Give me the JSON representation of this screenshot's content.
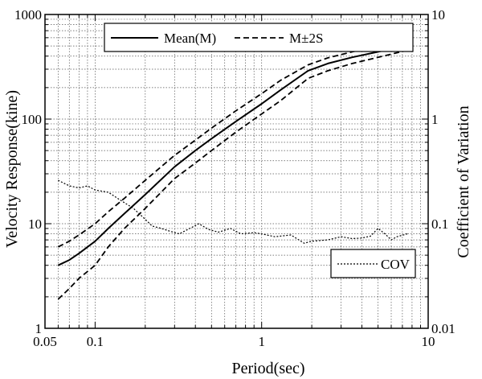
{
  "chart_data": {
    "type": "line",
    "x_scale": "log",
    "y_scale": "log",
    "y2_scale": "log",
    "xlim": [
      0.05,
      10
    ],
    "ylim": [
      1,
      1000
    ],
    "y2lim": [
      0.01,
      10
    ],
    "grid": true,
    "xlabel": "Period(sec)",
    "ylabel": "Velocity Response(kine)",
    "y2label": "Coefficient of Variation",
    "x_ticks": [
      {
        "value": 0.05,
        "label": "0.05"
      },
      {
        "value": 0.1,
        "label": "0.1"
      },
      {
        "value": 1,
        "label": "1"
      },
      {
        "value": 10,
        "label": "10"
      }
    ],
    "y_ticks": [
      {
        "value": 1,
        "label": "1"
      },
      {
        "value": 10,
        "label": "10"
      },
      {
        "value": 100,
        "label": "100"
      },
      {
        "value": 1000,
        "label": "1000"
      }
    ],
    "y2_ticks": [
      {
        "value": 0.01,
        "label": "0.01"
      },
      {
        "value": 0.1,
        "label": "0.1"
      },
      {
        "value": 1,
        "label": "1"
      },
      {
        "value": 10,
        "label": "10"
      }
    ],
    "legend_top": {
      "placement": "top-left",
      "entries": [
        {
          "label": "Mean(M)",
          "series": "mean"
        },
        {
          "label": "M±2S",
          "series": "m_plus_2s"
        }
      ]
    },
    "legend_bottom": {
      "placement": "bottom-right",
      "entries": [
        {
          "label": "COV",
          "series": "cov"
        }
      ]
    },
    "series": [
      {
        "id": "mean",
        "name": "Mean(M)",
        "axis": "left",
        "style": "solid",
        "x": [
          0.06,
          0.07,
          0.08,
          0.1,
          0.12,
          0.15,
          0.2,
          0.3,
          0.4,
          0.5,
          0.7,
          1.0,
          1.3,
          1.9,
          2.5,
          3.5,
          5.0,
          7.5
        ],
        "y": [
          4.0,
          4.5,
          5.2,
          6.8,
          9.0,
          12.5,
          19,
          35,
          50,
          65,
          95,
          140,
          190,
          290,
          340,
          390,
          440,
          510
        ]
      },
      {
        "id": "m_plus_2s",
        "name": "M±2S",
        "axis": "left",
        "style": "dashed",
        "x": [
          0.06,
          0.07,
          0.08,
          0.1,
          0.12,
          0.15,
          0.2,
          0.3,
          0.4,
          0.5,
          0.7,
          1.0,
          1.3,
          1.9,
          2.5,
          3.5,
          5.0,
          7.5
        ],
        "y": [
          6.0,
          6.8,
          7.8,
          10.0,
          13,
          17.5,
          26,
          45,
          63,
          82,
          120,
          175,
          235,
          330,
          385,
          440,
          500,
          580
        ]
      },
      {
        "id": "m_minus_2s",
        "name": "",
        "axis": "left",
        "style": "dashed",
        "x": [
          0.06,
          0.07,
          0.08,
          0.1,
          0.12,
          0.15,
          0.2,
          0.3,
          0.4,
          0.5,
          0.7,
          1.0,
          1.3,
          1.9,
          2.5,
          3.5,
          5.0,
          7.5
        ],
        "y": [
          1.9,
          2.4,
          3.0,
          4.0,
          6.0,
          9.0,
          14.0,
          27,
          38,
          50,
          75,
          112,
          150,
          245,
          290,
          340,
          390,
          455
        ]
      },
      {
        "id": "cov",
        "name": "COV",
        "axis": "right",
        "style": "dotted",
        "x": [
          0.06,
          0.07,
          0.08,
          0.09,
          0.1,
          0.12,
          0.14,
          0.17,
          0.2,
          0.22,
          0.25,
          0.28,
          0.32,
          0.37,
          0.42,
          0.48,
          0.55,
          0.65,
          0.75,
          0.9,
          1.0,
          1.2,
          1.5,
          1.8,
          2.0,
          2.5,
          3.0,
          3.5,
          4.0,
          4.5,
          5.0,
          5.5,
          6.0,
          6.5,
          7.5
        ],
        "y": [
          0.26,
          0.23,
          0.22,
          0.23,
          0.21,
          0.2,
          0.17,
          0.14,
          0.11,
          0.095,
          0.09,
          0.085,
          0.08,
          0.09,
          0.1,
          0.088,
          0.083,
          0.09,
          0.08,
          0.082,
          0.08,
          0.075,
          0.078,
          0.065,
          0.068,
          0.07,
          0.075,
          0.072,
          0.073,
          0.076,
          0.09,
          0.08,
          0.07,
          0.075,
          0.08
        ]
      }
    ]
  }
}
